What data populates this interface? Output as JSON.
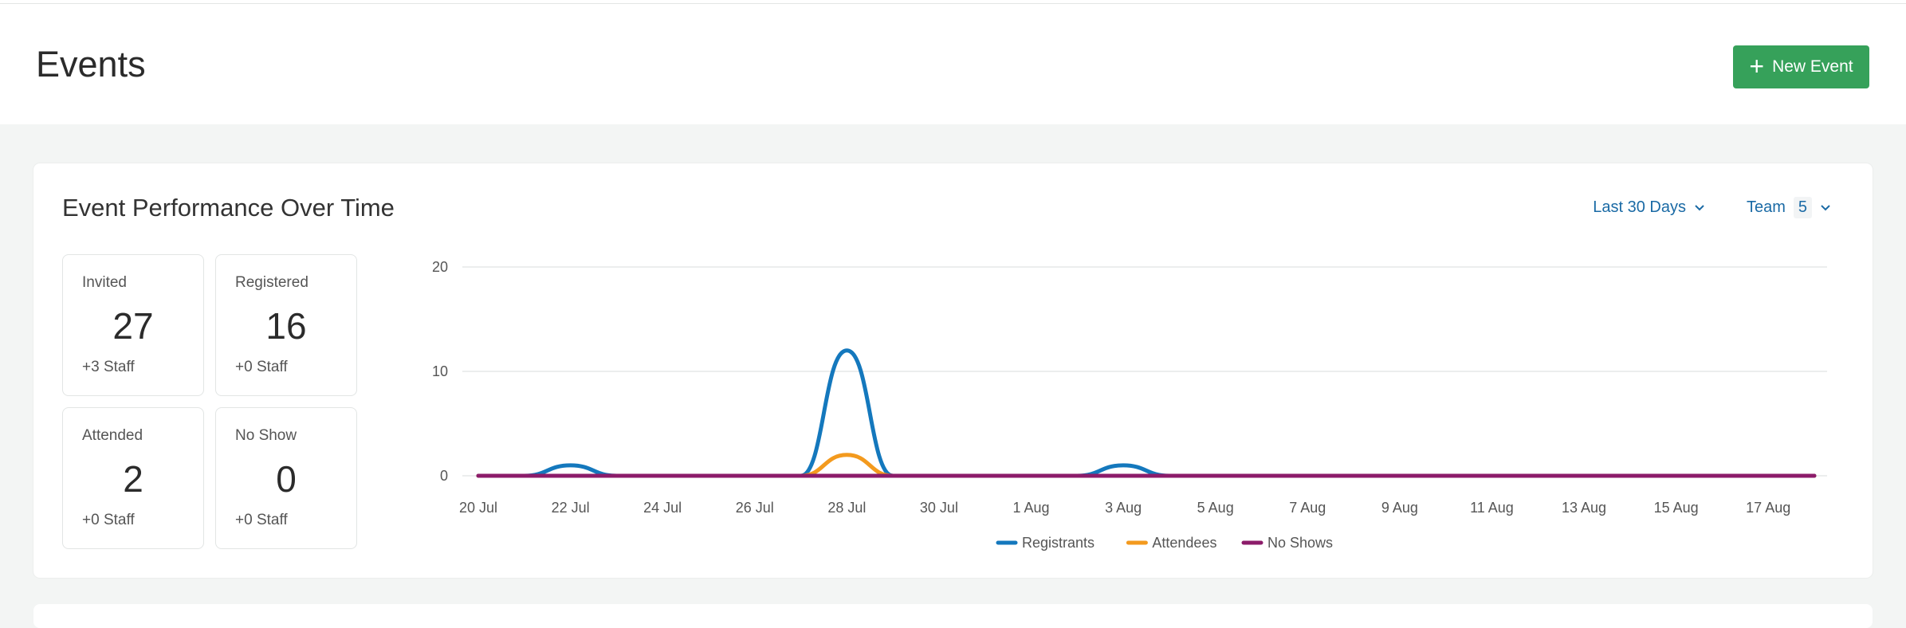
{
  "header": {
    "title": "Events",
    "new_event_label": "New Event"
  },
  "card": {
    "title": "Event Performance Over Time",
    "range_label": "Last 30 Days",
    "team_label": "Team",
    "team_count": "5"
  },
  "stats": [
    {
      "label": "Invited",
      "value": "27",
      "sub": "+3 Staff"
    },
    {
      "label": "Registered",
      "value": "16",
      "sub": "+0 Staff"
    },
    {
      "label": "Attended",
      "value": "2",
      "sub": "+0 Staff"
    },
    {
      "label": "No Show",
      "value": "0",
      "sub": "+0 Staff"
    }
  ],
  "colors": {
    "accent_green": "#36a15a",
    "link_blue": "#1a6aa5",
    "registrants": "#1478bd",
    "attendees": "#f39a1e",
    "no_shows": "#8c1c6a"
  },
  "chart_data": {
    "type": "line",
    "x": [
      "20 Jul",
      "21 Jul",
      "22 Jul",
      "23 Jul",
      "24 Jul",
      "25 Jul",
      "26 Jul",
      "27 Jul",
      "28 Jul",
      "29 Jul",
      "30 Jul",
      "31 Jul",
      "1 Aug",
      "2 Aug",
      "3 Aug",
      "4 Aug",
      "5 Aug",
      "6 Aug",
      "7 Aug",
      "8 Aug",
      "9 Aug",
      "10 Aug",
      "11 Aug",
      "12 Aug",
      "13 Aug",
      "14 Aug",
      "15 Aug",
      "16 Aug",
      "17 Aug",
      "18 Aug"
    ],
    "tick_labels": [
      "20 Jul",
      "22 Jul",
      "24 Jul",
      "26 Jul",
      "28 Jul",
      "30 Jul",
      "1 Aug",
      "3 Aug",
      "5 Aug",
      "7 Aug",
      "9 Aug",
      "11 Aug",
      "13 Aug",
      "15 Aug",
      "17 Aug"
    ],
    "series": [
      {
        "name": "Registrants",
        "color": "#1478bd",
        "values": [
          0,
          0,
          1,
          0,
          0,
          0,
          0,
          0,
          12,
          0,
          0,
          0,
          0,
          0,
          1,
          0,
          0,
          0,
          0,
          0,
          0,
          0,
          0,
          0,
          0,
          0,
          0,
          0,
          0,
          0
        ]
      },
      {
        "name": "Attendees",
        "color": "#f39a1e",
        "values": [
          0,
          0,
          0,
          0,
          0,
          0,
          0,
          0,
          2,
          0,
          0,
          0,
          0,
          0,
          0,
          0,
          0,
          0,
          0,
          0,
          0,
          0,
          0,
          0,
          0,
          0,
          0,
          0,
          0,
          0
        ]
      },
      {
        "name": "No Shows",
        "color": "#8c1c6a",
        "values": [
          0,
          0,
          0,
          0,
          0,
          0,
          0,
          0,
          0,
          0,
          0,
          0,
          0,
          0,
          0,
          0,
          0,
          0,
          0,
          0,
          0,
          0,
          0,
          0,
          0,
          0,
          0,
          0,
          0,
          0
        ]
      }
    ],
    "yticks": [
      0,
      10,
      20
    ],
    "ylim": [
      0,
      20
    ],
    "grid": true,
    "legend": "bottom-center"
  }
}
